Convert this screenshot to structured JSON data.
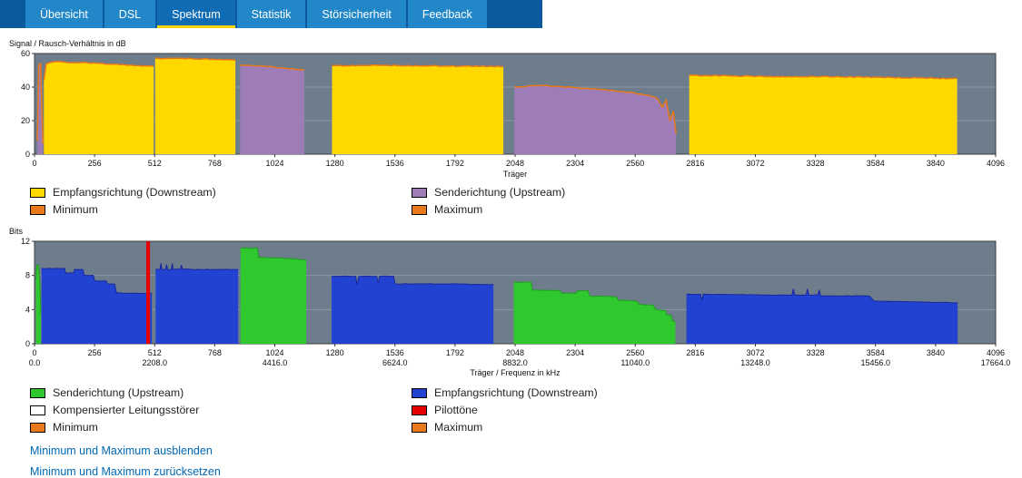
{
  "tabs": {
    "items": [
      {
        "label": "Übersicht",
        "active": false
      },
      {
        "label": "DSL",
        "active": false
      },
      {
        "label": "Spektrum",
        "active": true
      },
      {
        "label": "Statistik",
        "active": false
      },
      {
        "label": "Störsicherheit",
        "active": false
      },
      {
        "label": "Feedback",
        "active": false
      }
    ]
  },
  "colors": {
    "tab_bar": "#0b5a9d",
    "tab": "#2187c8",
    "tab_active": "#0f6cb4",
    "tab_underline": "#f5d400",
    "link": "#0068b4",
    "chart_bg": "#6d7d8c"
  },
  "links": [
    {
      "label": "Minimum und Maximum ausblenden"
    },
    {
      "label": "Minimum und Maximum zurücksetzen"
    }
  ],
  "chart_data": [
    {
      "type": "area",
      "name": "snr",
      "title": "Signal / Rausch-Verhältnis in dB",
      "xlabel": "Träger",
      "xlim": [
        0,
        4096
      ],
      "ylim": [
        0,
        60
      ],
      "xticks": [
        0,
        256,
        512,
        768,
        1024,
        1280,
        1536,
        1792,
        2048,
        2304,
        2560,
        2816,
        3072,
        3328,
        3584,
        3840,
        4096
      ],
      "yticks": [
        0,
        20,
        40,
        60
      ],
      "bg": "#6d7d8c",
      "series": [
        {
          "name": "Senderichtung (Upstream)",
          "color": "#9d7cb8",
          "stroke": "#e8791a",
          "stroke_width": 1.5,
          "jitter": 0.5,
          "segments": [
            [
              [
                12,
                8
              ],
              [
                18,
                53
              ],
              [
                26,
                54
              ],
              [
                32,
                22
              ],
              [
                36,
                6
              ]
            ],
            [
              [
                876,
                53
              ],
              [
                950,
                52.6
              ],
              [
                1050,
                51.6
              ],
              [
                1150,
                50.2
              ]
            ],
            [
              [
                2045,
                40
              ],
              [
                2150,
                41
              ],
              [
                2250,
                40.2
              ],
              [
                2350,
                39.2
              ],
              [
                2450,
                38.2
              ],
              [
                2550,
                36.6
              ],
              [
                2620,
                35
              ],
              [
                2655,
                33
              ],
              [
                2675,
                28
              ],
              [
                2692,
                32
              ],
              [
                2708,
                20
              ],
              [
                2722,
                26
              ],
              [
                2734,
                12
              ]
            ]
          ]
        },
        {
          "name": "Empfangsrichtung (Downstream)",
          "color": "#ffd800",
          "stroke": "#e8791a",
          "stroke_width": 1.5,
          "jitter": 0.55,
          "segments": [
            [
              [
                40,
                44
              ],
              [
                50,
                54
              ],
              [
                90,
                55
              ],
              [
                200,
                54.6
              ],
              [
                350,
                53.6
              ],
              [
                460,
                52.6
              ],
              [
                508,
                52.2
              ]
            ],
            [
              [
                514,
                57
              ],
              [
                650,
                57
              ],
              [
                780,
                56.6
              ],
              [
                856,
                56.2
              ]
            ],
            [
              [
                1268,
                52.6
              ],
              [
                1500,
                53
              ],
              [
                1700,
                52.6
              ],
              [
                1998,
                52.2
              ]
            ],
            [
              [
                2790,
                47
              ],
              [
                3000,
                46.6
              ],
              [
                3200,
                46.2
              ],
              [
                3400,
                46.2
              ],
              [
                3600,
                45.8
              ],
              [
                3800,
                45.4
              ],
              [
                3932,
                45
              ]
            ]
          ]
        }
      ],
      "legend": [
        {
          "label": "Empfangsrichtung (Downstream)",
          "color": "#ffd800"
        },
        {
          "label": "Senderichtung (Upstream)",
          "color": "#9d7cb8"
        },
        {
          "label": "Minimum",
          "color": "#e8791a"
        },
        {
          "label": "Maximum",
          "color": "#e8791a"
        }
      ]
    },
    {
      "type": "area",
      "name": "bits",
      "title": "Bits",
      "xlabel": "Träger / Frequenz in kHz",
      "xlim": [
        0,
        4096
      ],
      "ylim": [
        0,
        12
      ],
      "xticks": [
        0,
        256,
        512,
        768,
        1024,
        1280,
        1536,
        1792,
        2048,
        2304,
        2560,
        2816,
        3072,
        3328,
        3584,
        3840,
        4096
      ],
      "yticks": [
        0,
        4,
        8,
        12
      ],
      "freq_ticks": {
        "positions": [
          0,
          512,
          1024,
          1536,
          2048,
          2560,
          3072,
          3584,
          4096
        ],
        "labels": [
          "0.0",
          "2208.0",
          "4416.0",
          "6624.0",
          "8832.0",
          "11040.0",
          "13248.0",
          "15456.0",
          "17664.0"
        ]
      },
      "bg": "#6d7d8c",
      "series": [
        {
          "name": "Empfangsrichtung (Downstream)",
          "color": "#2243d2",
          "stroke": "#18279e",
          "stroke_width": 1,
          "jitter": 0.05,
          "segments": [
            [
              [
                30,
                8.8
              ],
              [
                128,
                8.8
              ],
              [
                133,
                8.3
              ],
              [
                166,
                8.3
              ],
              [
                171,
                8.7
              ],
              [
                206,
                8.7
              ],
              [
                212,
                8.0
              ],
              [
                250,
                8.0
              ],
              [
                257,
                7.35
              ],
              [
                305,
                7.35
              ],
              [
                311,
                7.0
              ],
              [
                342,
                7.0
              ],
              [
                349,
                5.95
              ],
              [
                430,
                5.9
              ],
              [
                500,
                5.9
              ]
            ],
            [
              [
                516,
                8.7
              ],
              [
                535,
                8.7
              ],
              [
                539,
                9.45
              ],
              [
                543,
                8.7
              ],
              [
                559,
                8.7
              ],
              [
                563,
                9.3
              ],
              [
                567,
                8.7
              ],
              [
                583,
                8.7
              ],
              [
                587,
                9.4
              ],
              [
                591,
                8.7
              ],
              [
                622,
                8.75
              ],
              [
                626,
                9.2
              ],
              [
                630,
                8.75
              ],
              [
                700,
                8.7
              ],
              [
                868,
                8.7
              ]
            ],
            [
              [
                1266,
                7.9
              ],
              [
                1368,
                7.9
              ],
              [
                1375,
                6.9
              ],
              [
                1382,
                7.9
              ],
              [
                1458,
                7.9
              ],
              [
                1464,
                7.1
              ],
              [
                1471,
                7.9
              ],
              [
                1530,
                7.9
              ],
              [
                1537,
                7.0
              ],
              [
                1800,
                7.0
              ],
              [
                1956,
                6.9
              ]
            ],
            [
              [
                2778,
                5.8
              ],
              [
                2838,
                5.8
              ],
              [
                2844,
                5.1
              ],
              [
                2850,
                5.8
              ],
              [
                2980,
                5.75
              ],
              [
                3180,
                5.7
              ],
              [
                3228,
                5.7
              ],
              [
                3234,
                6.4
              ],
              [
                3240,
                5.7
              ],
              [
                3288,
                5.7
              ],
              [
                3294,
                6.4
              ],
              [
                3300,
                5.7
              ],
              [
                3338,
                5.7
              ],
              [
                3344,
                6.3
              ],
              [
                3350,
                5.6
              ],
              [
                3558,
                5.6
              ],
              [
                3578,
                5.0
              ],
              [
                3760,
                4.9
              ],
              [
                3934,
                4.8
              ]
            ]
          ]
        },
        {
          "name": "Senderichtung (Upstream)",
          "color": "#2fc82f",
          "stroke": "#1da01d",
          "stroke_width": 1,
          "jitter": 0.05,
          "segments": [
            [
              [
                6,
                7.5
              ],
              [
                10,
                9.2
              ],
              [
                17,
                9.2
              ],
              [
                23,
                7
              ],
              [
                27,
                3.5
              ]
            ],
            [
              [
                878,
                11.2
              ],
              [
                950,
                11.2
              ],
              [
                955,
                10.1
              ],
              [
                1080,
                10.0
              ],
              [
                1158,
                9.8
              ]
            ],
            [
              [
                2042,
                7.2
              ],
              [
                2116,
                7.2
              ],
              [
                2121,
                6.3
              ],
              [
                2238,
                6.2
              ],
              [
                2248,
                5.9
              ],
              [
                2308,
                5.9
              ],
              [
                2313,
                6.2
              ],
              [
                2358,
                6.2
              ],
              [
                2366,
                5.6
              ],
              [
                2478,
                5.5
              ],
              [
                2488,
                5.1
              ],
              [
                2568,
                5.0
              ],
              [
                2576,
                4.6
              ],
              [
                2638,
                4.5
              ],
              [
                2646,
                4.0
              ],
              [
                2688,
                3.9
              ],
              [
                2694,
                3.4
              ],
              [
                2713,
                3.3
              ],
              [
                2719,
                2.7
              ],
              [
                2731,
                2.6
              ]
            ]
          ]
        }
      ],
      "vlines": [
        {
          "name": "pilot-tone",
          "x": 484,
          "width": 16,
          "y": 12,
          "color": "#e60000"
        }
      ],
      "legend": [
        {
          "label": "Senderichtung (Upstream)",
          "color": "#2fc82f"
        },
        {
          "label": "Empfangsrichtung (Downstream)",
          "color": "#2243d2"
        },
        {
          "label": "Kompensierter Leitungsstörer",
          "color": "#ffffff"
        },
        {
          "label": "Pilottöne",
          "color": "#e60000"
        },
        {
          "label": "Minimum",
          "color": "#e8791a"
        },
        {
          "label": "Maximum",
          "color": "#e8791a"
        }
      ]
    }
  ]
}
